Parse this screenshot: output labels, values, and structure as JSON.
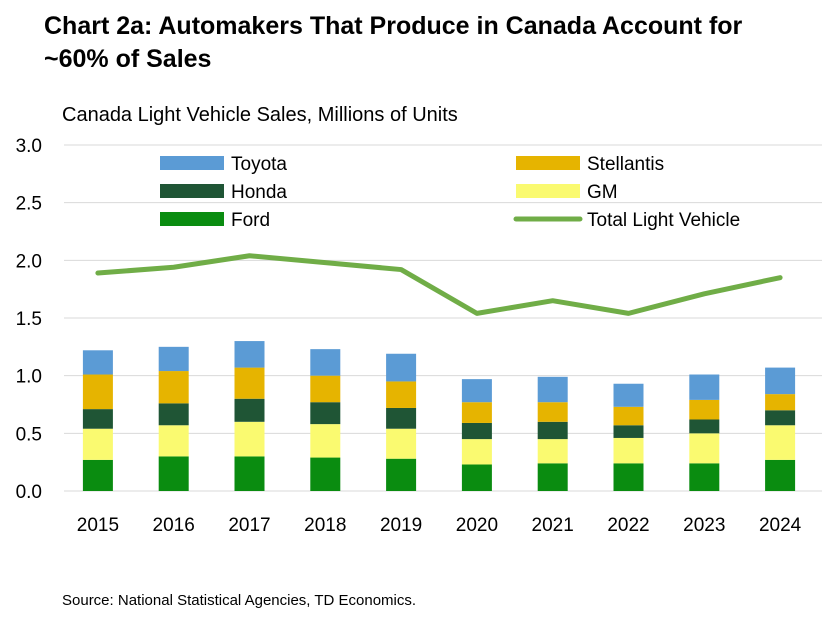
{
  "chart_data": {
    "type": "bar",
    "title": "Chart 2a: Automakers That Produce in Canada Account for ~60% of Sales",
    "subtitle": "Canada Light Vehicle Sales, Millions of Units",
    "source": "Source: National Statistical Agencies, TD Economics.",
    "categories": [
      "2015",
      "2016",
      "2017",
      "2018",
      "2019",
      "2020",
      "2021",
      "2022",
      "2023",
      "2024"
    ],
    "ylim": [
      0,
      3
    ],
    "yticks": [
      "0.0",
      "0.5",
      "1.0",
      "1.5",
      "2.0",
      "2.5",
      "3.0"
    ],
    "stacked_series": [
      {
        "name": "Ford",
        "color": "#0a8c10",
        "values": [
          0.27,
          0.3,
          0.3,
          0.29,
          0.28,
          0.23,
          0.24,
          0.24,
          0.24,
          0.27
        ]
      },
      {
        "name": "GM",
        "color": "#fafa70",
        "values": [
          0.27,
          0.27,
          0.3,
          0.29,
          0.26,
          0.22,
          0.21,
          0.22,
          0.26,
          0.3
        ]
      },
      {
        "name": "Honda",
        "color": "#1f5535",
        "values": [
          0.17,
          0.19,
          0.2,
          0.19,
          0.18,
          0.14,
          0.15,
          0.11,
          0.12,
          0.13
        ]
      },
      {
        "name": "Stellantis",
        "color": "#e6b400",
        "values": [
          0.3,
          0.28,
          0.27,
          0.23,
          0.23,
          0.18,
          0.17,
          0.16,
          0.17,
          0.14
        ]
      },
      {
        "name": "Toyota",
        "color": "#5b9bd5",
        "values": [
          0.21,
          0.21,
          0.23,
          0.23,
          0.24,
          0.2,
          0.22,
          0.2,
          0.22,
          0.23
        ]
      }
    ],
    "line_series": {
      "name": "Total Light Vehicle",
      "color": "#70ad47",
      "values": [
        1.89,
        1.94,
        2.04,
        1.98,
        1.92,
        1.54,
        1.65,
        1.54,
        1.71,
        1.85
      ]
    },
    "legend": [
      {
        "name": "Toyota",
        "kind": "bar",
        "color": "#5b9bd5"
      },
      {
        "name": "Stellantis",
        "kind": "bar",
        "color": "#e6b400"
      },
      {
        "name": "Honda",
        "kind": "bar",
        "color": "#1f5535"
      },
      {
        "name": "GM",
        "kind": "bar",
        "color": "#fafa70"
      },
      {
        "name": "Ford",
        "kind": "bar",
        "color": "#0a8c10"
      },
      {
        "name": "Total Light Vehicle",
        "kind": "line",
        "color": "#70ad47"
      }
    ],
    "legend_position": "top",
    "grid": true
  }
}
